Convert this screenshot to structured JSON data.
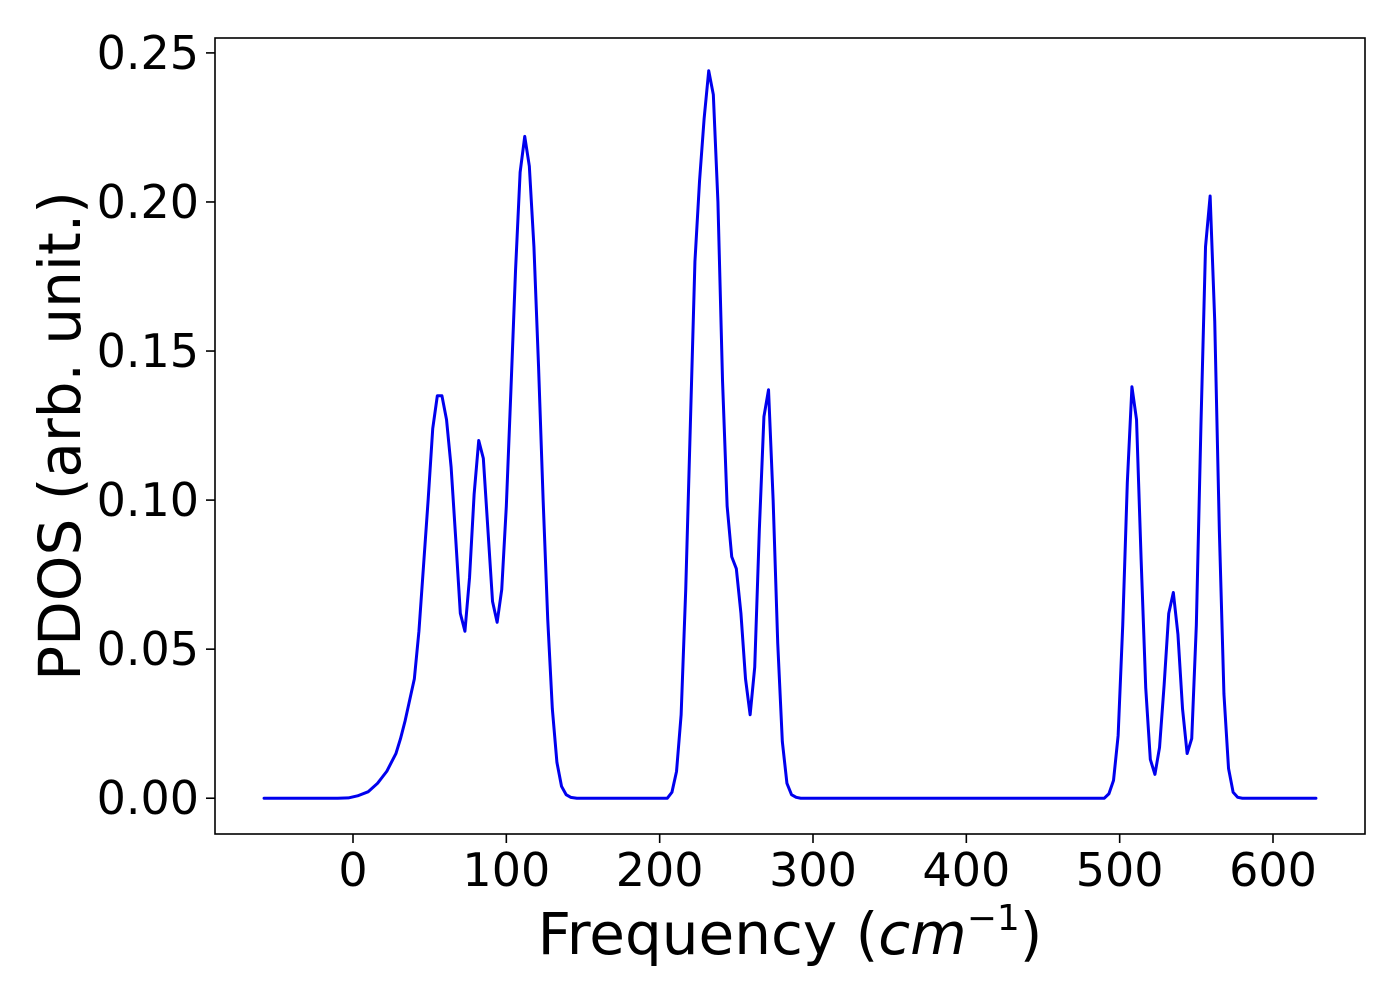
{
  "chart_data": {
    "type": "line",
    "title": "",
    "xlabel": "Frequency",
    "xlabel_unit": "cm",
    "xlabel_unit_exponent": "−1",
    "ylabel": "PDOS (arb. unit.)",
    "xlim": [
      -90,
      660
    ],
    "ylim": [
      -0.012,
      0.255
    ],
    "xticks": [
      0,
      100,
      200,
      300,
      400,
      500,
      600
    ],
    "xtick_labels": [
      "0",
      "100",
      "200",
      "300",
      "400",
      "500",
      "600"
    ],
    "yticks": [
      0.0,
      0.05,
      0.1,
      0.15,
      0.2,
      0.25
    ],
    "ytick_labels": [
      "0.00",
      "0.05",
      "0.10",
      "0.15",
      "0.20",
      "0.25"
    ],
    "grid": false,
    "legend": "none",
    "line_color": "#0000ee",
    "series": [
      {
        "values": [
          [
            -58,
            0.0
          ],
          [
            -10,
            0.0
          ],
          [
            -3,
            0.0001
          ],
          [
            3,
            0.0008
          ],
          [
            10,
            0.0022
          ],
          [
            16,
            0.005
          ],
          [
            22,
            0.009
          ],
          [
            28,
            0.015
          ],
          [
            31,
            0.02
          ],
          [
            34,
            0.026
          ],
          [
            37,
            0.033
          ],
          [
            40,
            0.04
          ],
          [
            43,
            0.056
          ],
          [
            46,
            0.078
          ],
          [
            49,
            0.1
          ],
          [
            52,
            0.124
          ],
          [
            55,
            0.135
          ],
          [
            58,
            0.135
          ],
          [
            61,
            0.127
          ],
          [
            64,
            0.111
          ],
          [
            67,
            0.087
          ],
          [
            70,
            0.062
          ],
          [
            73,
            0.056
          ],
          [
            76,
            0.074
          ],
          [
            79,
            0.102
          ],
          [
            82,
            0.12
          ],
          [
            85,
            0.114
          ],
          [
            88,
            0.09
          ],
          [
            91,
            0.066
          ],
          [
            94,
            0.059
          ],
          [
            97,
            0.07
          ],
          [
            100,
            0.098
          ],
          [
            103,
            0.137
          ],
          [
            106,
            0.177
          ],
          [
            109,
            0.21
          ],
          [
            112,
            0.222
          ],
          [
            115,
            0.212
          ],
          [
            118,
            0.185
          ],
          [
            121,
            0.145
          ],
          [
            124,
            0.1
          ],
          [
            127,
            0.06
          ],
          [
            130,
            0.03
          ],
          [
            133,
            0.012
          ],
          [
            136,
            0.004
          ],
          [
            139,
            0.0012
          ],
          [
            142,
            0.0003
          ],
          [
            146,
            0.0
          ],
          [
            205,
            0.0
          ],
          [
            208,
            0.002
          ],
          [
            211,
            0.009
          ],
          [
            214,
            0.028
          ],
          [
            217,
            0.07
          ],
          [
            220,
            0.125
          ],
          [
            223,
            0.18
          ],
          [
            226,
            0.207
          ],
          [
            229,
            0.228
          ],
          [
            232,
            0.244
          ],
          [
            235,
            0.236
          ],
          [
            238,
            0.2
          ],
          [
            241,
            0.14
          ],
          [
            244,
            0.098
          ],
          [
            247,
            0.081
          ],
          [
            250,
            0.077
          ],
          [
            253,
            0.062
          ],
          [
            256,
            0.04
          ],
          [
            259,
            0.028
          ],
          [
            262,
            0.044
          ],
          [
            265,
            0.09
          ],
          [
            268,
            0.128
          ],
          [
            271,
            0.137
          ],
          [
            274,
            0.1
          ],
          [
            277,
            0.052
          ],
          [
            280,
            0.019
          ],
          [
            283,
            0.005
          ],
          [
            286,
            0.0012
          ],
          [
            289,
            0.0003
          ],
          [
            292,
            0.0
          ],
          [
            490,
            0.0
          ],
          [
            493,
            0.0015
          ],
          [
            496,
            0.006
          ],
          [
            499,
            0.021
          ],
          [
            502,
            0.058
          ],
          [
            505,
            0.106
          ],
          [
            508,
            0.138
          ],
          [
            511,
            0.127
          ],
          [
            514,
            0.08
          ],
          [
            517,
            0.037
          ],
          [
            520,
            0.013
          ],
          [
            523,
            0.008
          ],
          [
            526,
            0.017
          ],
          [
            529,
            0.038
          ],
          [
            532,
            0.062
          ],
          [
            535,
            0.069
          ],
          [
            538,
            0.055
          ],
          [
            541,
            0.03
          ],
          [
            544,
            0.015
          ],
          [
            547,
            0.02
          ],
          [
            550,
            0.058
          ],
          [
            553,
            0.125
          ],
          [
            556,
            0.185
          ],
          [
            559,
            0.202
          ],
          [
            562,
            0.16
          ],
          [
            565,
            0.09
          ],
          [
            568,
            0.035
          ],
          [
            571,
            0.01
          ],
          [
            574,
            0.002
          ],
          [
            577,
            0.0003
          ],
          [
            580,
            0.0
          ],
          [
            628,
            0.0
          ]
        ]
      }
    ]
  }
}
